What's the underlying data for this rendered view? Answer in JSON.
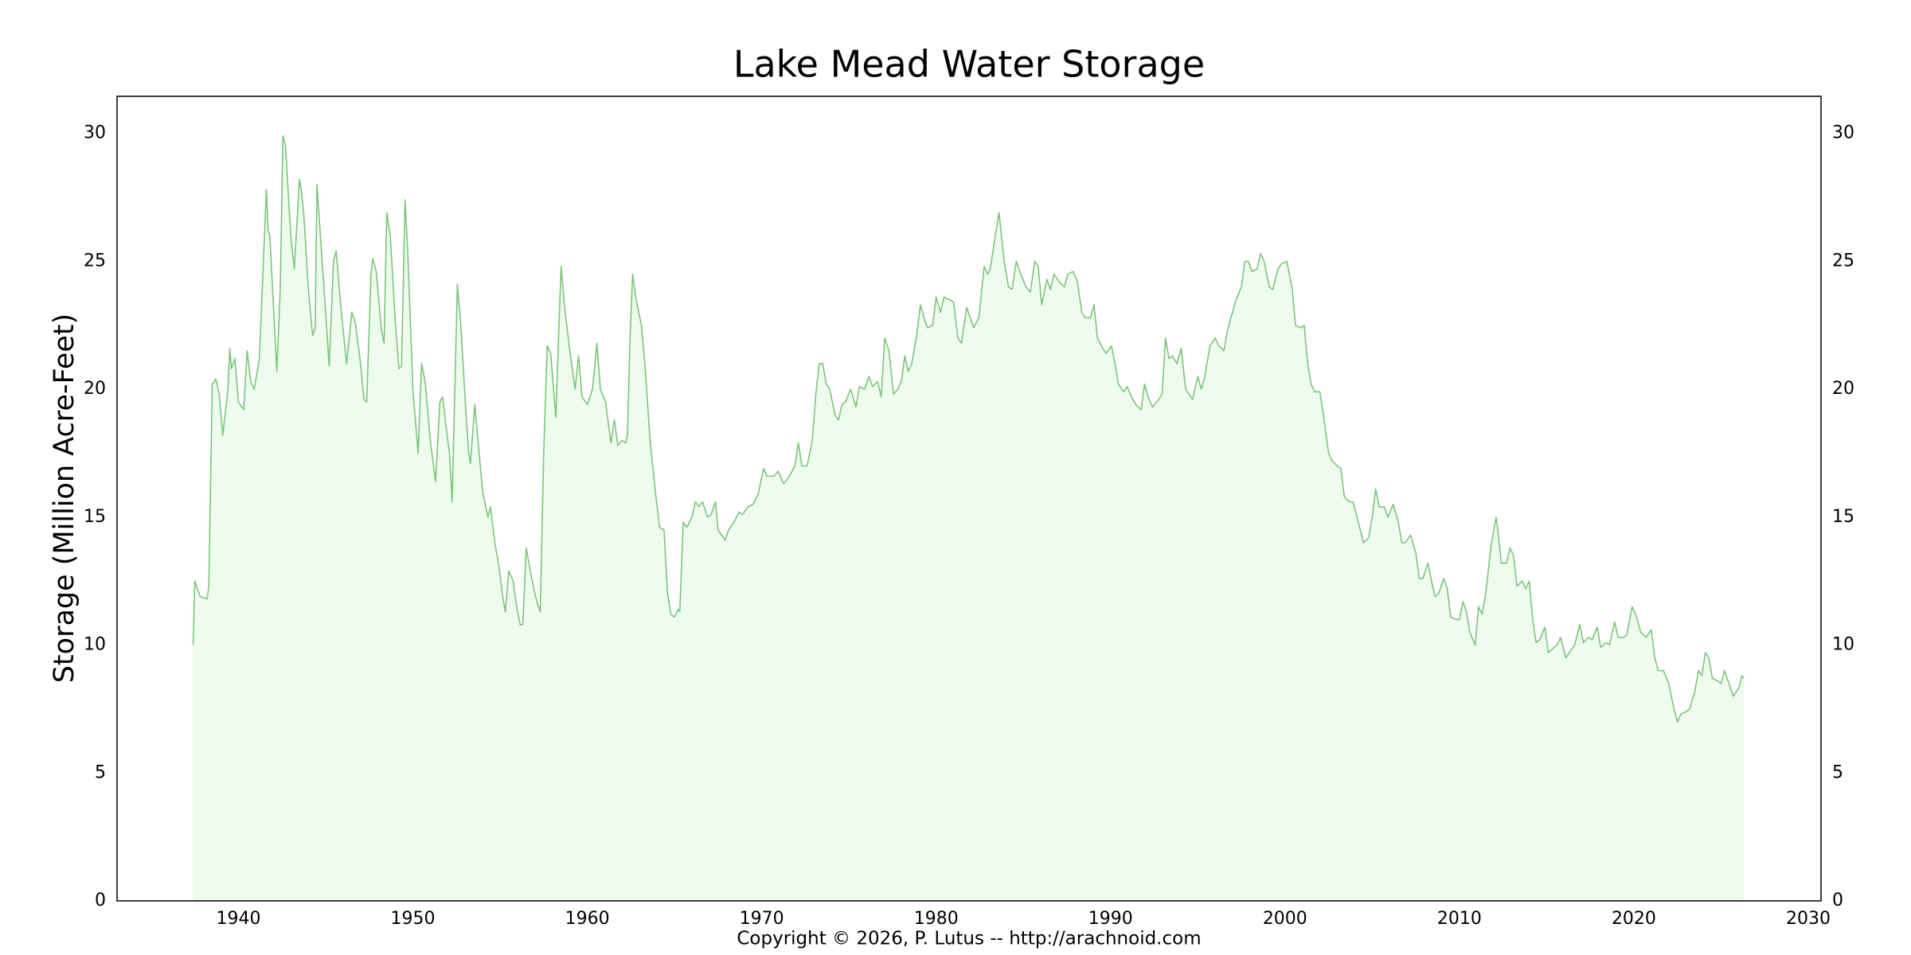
{
  "chart_data": {
    "type": "line",
    "title": "Lake Mead Water Storage",
    "y_label": "Storage (Million Acre-Feet)",
    "footer": "Copyright © 2026, P. Lutus -- http://arachnoid.com",
    "color": "#7cc47c",
    "fill": true,
    "fill_color": "#eefcee",
    "grid": true,
    "mirror_y": true,
    "xlim": [
      1933.04,
      2030.73
    ],
    "ylim": [
      0,
      31.45
    ],
    "xticks": [
      1940,
      1950,
      1960,
      1970,
      1980,
      1990,
      2000,
      2010,
      2020,
      2030
    ],
    "yticks": [
      0,
      5,
      10,
      15,
      20,
      25,
      30
    ],
    "xminorticks": [
      1934,
      1936,
      1938,
      1942,
      1944,
      1946,
      1948,
      1952,
      1954,
      1956,
      1958,
      1962,
      1964,
      1966,
      1968,
      1972,
      1974,
      1976,
      1978,
      1982,
      1984,
      1986,
      1988,
      1992,
      1994,
      1996,
      1998,
      2002,
      2004,
      2006,
      2008,
      2012,
      2014,
      2016,
      2018,
      2022,
      2024,
      2026,
      2028
    ],
    "yminorticks": [
      1,
      2,
      3,
      4,
      6,
      7,
      8,
      9,
      11,
      12,
      13,
      14,
      16,
      17,
      18,
      19,
      21,
      22,
      23,
      24,
      26,
      27,
      28,
      29,
      31
    ],
    "x": [
      1937.4,
      1937.5,
      1937.8,
      1938.2,
      1938.3,
      1938.5,
      1938.7,
      1938.9,
      1939.1,
      1939.4,
      1939.5,
      1939.6,
      1939.8,
      1940.0,
      1940.3,
      1940.5,
      1940.7,
      1940.9,
      1941.2,
      1941.6,
      1941.7,
      1941.8,
      1942.2,
      1942.4,
      1942.55,
      1942.7,
      1943.0,
      1943.2,
      1943.5,
      1943.6,
      1943.75,
      1944.0,
      1944.25,
      1944.4,
      1944.5,
      1944.8,
      1945.1,
      1945.2,
      1945.45,
      1945.6,
      1945.9,
      1946.2,
      1946.5,
      1946.7,
      1947.0,
      1947.2,
      1947.35,
      1947.6,
      1947.7,
      1947.9,
      1948.2,
      1948.35,
      1948.5,
      1948.7,
      1949.0,
      1949.2,
      1949.35,
      1949.55,
      1949.7,
      1950.0,
      1950.3,
      1950.5,
      1950.7,
      1951.0,
      1951.3,
      1951.55,
      1951.7,
      1952.0,
      1952.1,
      1952.25,
      1952.55,
      1952.75,
      1953.05,
      1953.2,
      1953.3,
      1953.55,
      1953.8,
      1954.0,
      1954.3,
      1954.45,
      1954.7,
      1954.95,
      1955.15,
      1955.3,
      1955.5,
      1955.75,
      1955.95,
      1956.15,
      1956.3,
      1956.5,
      1956.7,
      1957.0,
      1957.15,
      1957.3,
      1957.5,
      1957.7,
      1957.9,
      1958.2,
      1958.35,
      1958.5,
      1958.7,
      1959.0,
      1959.3,
      1959.5,
      1959.7,
      1960.0,
      1960.3,
      1960.55,
      1960.75,
      1961.05,
      1961.35,
      1961.55,
      1961.75,
      1962.0,
      1962.2,
      1962.3,
      1962.45,
      1962.6,
      1962.8,
      1963.1,
      1963.3,
      1963.6,
      1963.9,
      1964.15,
      1964.4,
      1964.6,
      1964.8,
      1965.0,
      1965.2,
      1965.3,
      1965.5,
      1965.7,
      1966.0,
      1966.2,
      1966.4,
      1966.6,
      1966.9,
      1967.1,
      1967.35,
      1967.5,
      1967.7,
      1967.9,
      1968.1,
      1968.4,
      1968.7,
      1968.9,
      1969.2,
      1969.5,
      1969.8,
      1970.1,
      1970.3,
      1970.7,
      1970.95,
      1971.25,
      1971.5,
      1971.9,
      1972.1,
      1972.3,
      1972.6,
      1972.9,
      1973.1,
      1973.3,
      1973.5,
      1973.7,
      1973.9,
      1974.2,
      1974.4,
      1974.6,
      1974.8,
      1975.1,
      1975.4,
      1975.6,
      1975.9,
      1976.15,
      1976.35,
      1976.65,
      1976.85,
      1977.05,
      1977.3,
      1977.55,
      1977.8,
      1978.0,
      1978.2,
      1978.4,
      1978.6,
      1978.9,
      1979.1,
      1979.3,
      1979.5,
      1979.8,
      1980.0,
      1980.25,
      1980.45,
      1980.75,
      1981.0,
      1981.25,
      1981.45,
      1981.75,
      1981.95,
      1982.15,
      1982.45,
      1982.75,
      1982.95,
      1983.1,
      1983.6,
      1983.9,
      1984.15,
      1984.35,
      1984.6,
      1984.85,
      1985.15,
      1985.4,
      1985.65,
      1985.85,
      1986.05,
      1986.35,
      1986.55,
      1986.75,
      1987.05,
      1987.35,
      1987.55,
      1987.85,
      1988.1,
      1988.35,
      1988.55,
      1988.85,
      1989.05,
      1989.25,
      1989.55,
      1989.75,
      1990.05,
      1990.25,
      1990.45,
      1990.75,
      1990.95,
      1991.2,
      1991.45,
      1991.75,
      1991.95,
      1992.15,
      1992.4,
      1992.65,
      1992.95,
      1993.15,
      1993.35,
      1993.55,
      1993.8,
      1994.05,
      1994.3,
      1994.5,
      1994.7,
      1995.0,
      1995.2,
      1995.4,
      1995.7,
      1996.0,
      1996.2,
      1996.5,
      1996.7,
      1996.9,
      1997.2,
      1997.5,
      1997.7,
      1997.9,
      1998.1,
      1998.4,
      1998.6,
      1998.8,
      1999.1,
      1999.3,
      1999.6,
      1999.8,
      2000.1,
      2000.4,
      2000.6,
      2000.9,
      2001.1,
      2001.3,
      2001.5,
      2001.7,
      2002.0,
      2002.2,
      2002.5,
      2002.7,
      2003.0,
      2003.2,
      2003.4,
      2003.7,
      2003.9,
      2004.2,
      2004.5,
      2004.8,
      2005.0,
      2005.2,
      2005.4,
      2005.7,
      2005.9,
      2006.2,
      2006.5,
      2006.7,
      2006.9,
      2007.2,
      2007.5,
      2007.7,
      2007.9,
      2008.2,
      2008.4,
      2008.6,
      2008.8,
      2009.1,
      2009.3,
      2009.5,
      2009.8,
      2010.0,
      2010.2,
      2010.4,
      2010.6,
      2010.9,
      2011.1,
      2011.3,
      2011.5,
      2011.8,
      2012.1,
      2012.2,
      2012.4,
      2012.7,
      2012.9,
      2013.1,
      2013.3,
      2013.6,
      2013.8,
      2014.0,
      2014.2,
      2014.4,
      2014.6,
      2014.9,
      2015.1,
      2015.4,
      2015.6,
      2015.8,
      2016.1,
      2016.3,
      2016.6,
      2016.9,
      2017.1,
      2017.4,
      2017.6,
      2017.9,
      2018.1,
      2018.4,
      2018.6,
      2018.9,
      2019.1,
      2019.4,
      2019.6,
      2019.9,
      2020.1,
      2020.4,
      2020.7,
      2021.0,
      2021.2,
      2021.4,
      2021.7,
      2022.0,
      2022.3,
      2022.5,
      2022.7,
      2023.0,
      2023.2,
      2023.5,
      2023.7,
      2023.9,
      2024.1,
      2024.3,
      2024.5,
      2024.8,
      2025.0,
      2025.2,
      2025.4,
      2025.7,
      2026.0,
      2026.2,
      2026.3
    ],
    "values": [
      10.0,
      12.5,
      11.9,
      11.8,
      12.3,
      20.2,
      20.4,
      19.8,
      18.2,
      20.0,
      21.6,
      20.8,
      21.2,
      19.5,
      19.2,
      21.5,
      20.3,
      20.0,
      21.2,
      27.8,
      26.2,
      26.0,
      20.7,
      24.0,
      29.9,
      29.5,
      26.0,
      24.7,
      28.2,
      27.8,
      26.8,
      24.0,
      22.1,
      22.4,
      28.0,
      25.0,
      22.0,
      20.9,
      25.0,
      25.4,
      23.0,
      21.0,
      23.0,
      22.6,
      21.0,
      19.6,
      19.5,
      24.5,
      25.1,
      24.6,
      22.3,
      21.8,
      26.9,
      26.0,
      22.6,
      20.8,
      20.9,
      27.4,
      25.5,
      20.0,
      17.5,
      21.0,
      20.3,
      18.0,
      16.4,
      19.5,
      19.7,
      18.0,
      17.5,
      15.6,
      24.1,
      22.5,
      19.0,
      17.5,
      17.1,
      19.4,
      17.5,
      16.0,
      15.0,
      15.4,
      14.0,
      13.0,
      11.9,
      11.3,
      12.9,
      12.5,
      11.5,
      10.8,
      10.8,
      13.8,
      13.0,
      12.0,
      11.6,
      11.3,
      17.5,
      21.7,
      21.4,
      18.9,
      22.0,
      24.8,
      23.2,
      21.5,
      20.0,
      21.3,
      19.7,
      19.4,
      20.0,
      21.8,
      20.0,
      19.5,
      17.9,
      18.8,
      17.8,
      18.0,
      17.9,
      18.2,
      22.0,
      24.5,
      23.5,
      22.5,
      21.0,
      18.0,
      16.0,
      14.6,
      14.5,
      12.0,
      11.2,
      11.1,
      11.4,
      11.3,
      14.8,
      14.6,
      15.0,
      15.6,
      15.4,
      15.6,
      15.0,
      15.1,
      15.6,
      14.5,
      14.3,
      14.1,
      14.5,
      14.8,
      15.2,
      15.1,
      15.4,
      15.5,
      15.9,
      16.9,
      16.6,
      16.6,
      16.8,
      16.3,
      16.5,
      17.0,
      17.9,
      17.0,
      17.0,
      18.0,
      19.8,
      21.0,
      21.0,
      20.2,
      20.0,
      19.0,
      18.8,
      19.4,
      19.5,
      20.0,
      19.3,
      20.1,
      20.0,
      20.5,
      20.1,
      20.3,
      19.7,
      22.0,
      21.5,
      19.8,
      20.0,
      20.3,
      21.3,
      20.7,
      21.0,
      22.2,
      23.3,
      22.8,
      22.4,
      22.5,
      23.6,
      23.0,
      23.6,
      23.5,
      23.4,
      22.0,
      21.8,
      23.2,
      22.8,
      22.4,
      22.8,
      24.8,
      24.5,
      24.7,
      26.9,
      25.0,
      24.0,
      23.9,
      25.0,
      24.5,
      24.0,
      23.8,
      25.0,
      24.8,
      23.3,
      24.3,
      23.9,
      24.5,
      24.2,
      24.0,
      24.5,
      24.6,
      24.2,
      23.0,
      22.8,
      22.8,
      23.3,
      22.0,
      21.6,
      21.4,
      21.7,
      21.0,
      20.2,
      19.9,
      20.1,
      19.7,
      19.4,
      19.2,
      20.2,
      19.7,
      19.3,
      19.5,
      19.8,
      22.0,
      21.2,
      21.3,
      21.0,
      21.6,
      20.0,
      19.8,
      19.6,
      20.5,
      20.0,
      20.5,
      21.7,
      22.0,
      21.7,
      21.5,
      22.3,
      22.8,
      23.5,
      24.0,
      25.0,
      25.0,
      24.6,
      24.7,
      25.3,
      25.0,
      24.0,
      23.9,
      24.7,
      24.9,
      25.0,
      24.0,
      22.5,
      22.4,
      22.5,
      21.0,
      20.2,
      19.9,
      19.9,
      19.0,
      17.5,
      17.2,
      17.0,
      16.9,
      15.8,
      15.6,
      15.6,
      14.8,
      14.0,
      14.2,
      15.0,
      16.1,
      15.4,
      15.4,
      15.0,
      15.5,
      14.8,
      14.0,
      14.0,
      14.3,
      13.6,
      12.6,
      12.6,
      13.2,
      12.5,
      11.9,
      12.0,
      12.6,
      12.2,
      11.1,
      11.0,
      11.0,
      11.7,
      11.3,
      10.5,
      10.0,
      11.5,
      11.2,
      12.0,
      13.8,
      15.0,
      14.5,
      13.2,
      13.2,
      13.8,
      13.5,
      12.3,
      12.5,
      12.2,
      12.5,
      11.0,
      10.1,
      10.2,
      10.7,
      9.7,
      9.9,
      10.0,
      10.3,
      9.5,
      9.7,
      10.0,
      10.8,
      10.1,
      10.3,
      10.2,
      10.7,
      9.9,
      10.1,
      10.0,
      10.9,
      10.3,
      10.3,
      10.4,
      11.5,
      11.2,
      10.5,
      10.3,
      10.6,
      9.5,
      9.0,
      9.0,
      8.5,
      7.5,
      7.0,
      7.3,
      7.4,
      7.5,
      8.2,
      9.0,
      8.8,
      9.7,
      9.5,
      8.7,
      8.6,
      8.5,
      9.0,
      8.6,
      8.0,
      8.3,
      8.8,
      8.7
    ]
  }
}
